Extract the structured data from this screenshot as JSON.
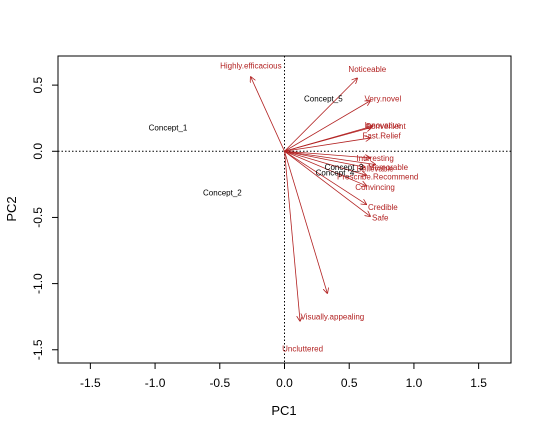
{
  "chart_data": {
    "type": "scatter",
    "subtype": "pca-biplot",
    "title": "",
    "xlabel": "PC1",
    "ylabel": "PC2",
    "xlim": [
      -1.75,
      1.75
    ],
    "ylim": [
      -1.6,
      0.72
    ],
    "xticks": [
      -1.5,
      -1.0,
      -0.5,
      0.0,
      0.5,
      1.0,
      1.5
    ],
    "yticks": [
      -1.5,
      -1.0,
      -0.5,
      0.0,
      0.5
    ],
    "xtick_labels": [
      "-1.5",
      "-1.0",
      "-0.5",
      "0.0",
      "0.5",
      "1.0",
      "1.5"
    ],
    "ytick_labels": [
      "-1.5",
      "-1.0",
      "-0.5",
      "0.0",
      "0.5"
    ],
    "reference_lines": {
      "x": 0,
      "y": 0,
      "style": "dotted"
    },
    "grid": false,
    "arrow_color": "#b22222",
    "label_color": "#b22222",
    "observations": [
      {
        "label": "Concept_1",
        "x": -0.9,
        "y": 0.18
      },
      {
        "label": "Concept_2",
        "x": -0.48,
        "y": -0.31
      },
      {
        "label": "Concept_3",
        "x": 0.46,
        "y": -0.12
      },
      {
        "label": "Concept_4",
        "x": 0.39,
        "y": -0.16
      },
      {
        "label": "Concept_5",
        "x": 0.3,
        "y": 0.4
      }
    ],
    "loadings": [
      {
        "label": "Highly.efficacious",
        "x": -0.26,
        "y": 0.56
      },
      {
        "label": "Noticeable",
        "x": 0.56,
        "y": 0.55
      },
      {
        "label": "Very.novel",
        "x": 0.66,
        "y": 0.38
      },
      {
        "label": "Convenient",
        "x": 0.68,
        "y": 0.19
      },
      {
        "label": "Innovative",
        "x": 0.67,
        "y": 0.18
      },
      {
        "label": "Fast.Relief",
        "x": 0.66,
        "y": 0.1
      },
      {
        "label": "Interesting",
        "x": 0.66,
        "y": -0.05
      },
      {
        "label": "Memorable",
        "x": 0.7,
        "y": -0.1
      },
      {
        "label": "Believable",
        "x": 0.62,
        "y": -0.12
      },
      {
        "label": "Prescribe.Recommend",
        "x": 0.63,
        "y": -0.18
      },
      {
        "label": "Convincing",
        "x": 0.63,
        "y": -0.26
      },
      {
        "label": "Credible",
        "x": 0.63,
        "y": -0.4
      },
      {
        "label": "Safe",
        "x": 0.66,
        "y": -0.49
      },
      {
        "label": "Visually.appealing",
        "x": 0.12,
        "y": -1.28
      },
      {
        "label": "Uncluttered",
        "x": 0.33,
        "y": -1.07
      }
    ],
    "loading_label_positions": [
      {
        "label": "Highly.efficacious",
        "x": -0.26,
        "y": 0.65
      },
      {
        "label": "Noticeable",
        "x": 0.64,
        "y": 0.62
      },
      {
        "label": "Very.novel",
        "x": 0.76,
        "y": 0.4
      },
      {
        "label": "Convenient",
        "x": 0.78,
        "y": 0.19
      },
      {
        "label": "Innovative",
        "x": 0.76,
        "y": 0.2
      },
      {
        "label": "Fast.Relief",
        "x": 0.75,
        "y": 0.12
      },
      {
        "label": "Interesting",
        "x": 0.7,
        "y": -0.05
      },
      {
        "label": "Memorable",
        "x": 0.8,
        "y": -0.12
      },
      {
        "label": "Believable",
        "x": 0.7,
        "y": -0.13
      },
      {
        "label": "Prescribe.Recommend",
        "x": 0.72,
        "y": -0.19
      },
      {
        "label": "Convincing",
        "x": 0.7,
        "y": -0.27
      },
      {
        "label": "Credible",
        "x": 0.76,
        "y": -0.42
      },
      {
        "label": "Safe",
        "x": 0.74,
        "y": -0.5
      },
      {
        "label": "Visually.appealing",
        "x": 0.37,
        "y": -1.25
      },
      {
        "label": "Uncluttered",
        "x": 0.14,
        "y": -1.49
      }
    ]
  }
}
